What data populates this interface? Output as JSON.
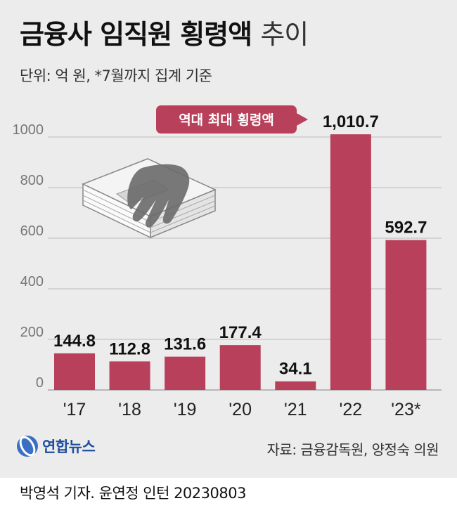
{
  "header": {
    "title_bold": "금융사 임직원 횡령액",
    "title_light": "추이",
    "subtitle": "단위: 억 원, *7월까지 집계 기준"
  },
  "chart_data": {
    "type": "bar",
    "categories": [
      "'17",
      "'18",
      "'19",
      "'20",
      "'21",
      "'22",
      "'23*"
    ],
    "values": [
      144.8,
      112.8,
      131.6,
      177.4,
      34.1,
      1010.7,
      592.7
    ],
    "value_labels": [
      "144.8",
      "112.8",
      "131.6",
      "177.4",
      "34.1",
      "1,010.7",
      "592.7"
    ],
    "y_ticks": [
      0,
      200,
      400,
      600,
      800,
      1000
    ],
    "y_tick_labels": [
      "0",
      "200",
      "400",
      "600",
      "800",
      "1000"
    ],
    "ylim": [
      0,
      1100
    ],
    "grid": true,
    "bar_color": "#b8405a",
    "annotation": {
      "text": "역대 최대 횡령액",
      "category_index": 5,
      "color": "#b8405a"
    }
  },
  "footer": {
    "logo_text": "연합뉴스",
    "logo_icon": "yonhap-logo-icon",
    "source": "자료: 금융감독원, 양정숙 의원",
    "credit": "박영석 기자. 윤연정 인턴  20230803"
  },
  "illustration": {
    "icon": "money-stack-hand-icon"
  }
}
